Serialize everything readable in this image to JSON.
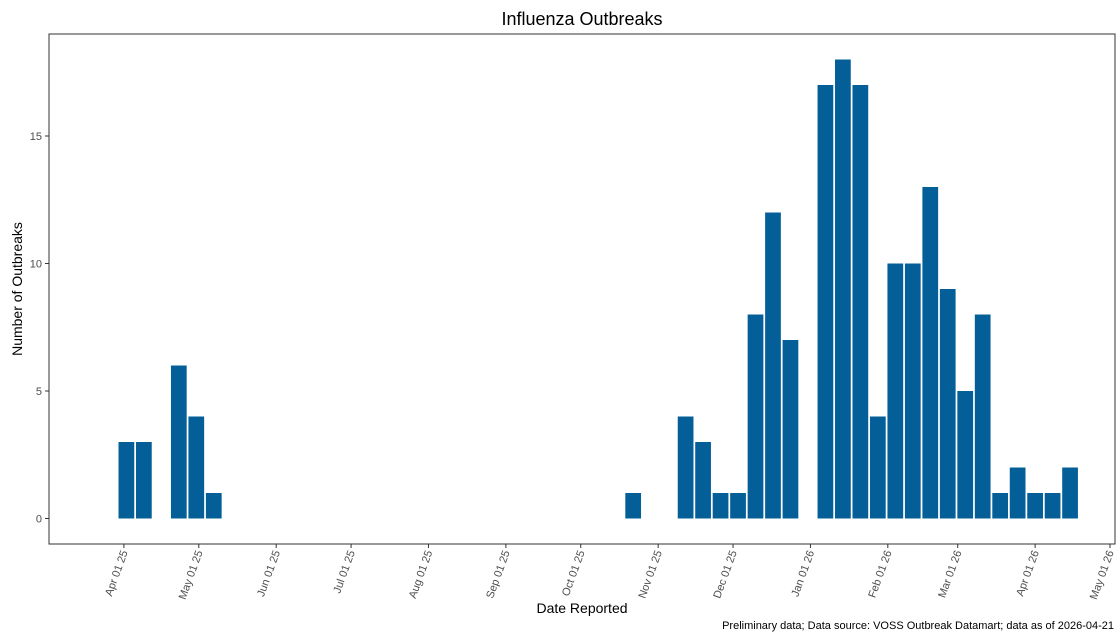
{
  "chart_data": {
    "type": "bar",
    "title": "Influenza Outbreaks",
    "xlabel": "Date Reported",
    "ylabel": "Number of Outbreaks",
    "caption": "Preliminary data; Data source: VOSS Outbreak Datamart; data as of 2026-04-21",
    "x_axis_range": [
      "2025-03-02",
      "2026-05-03"
    ],
    "x_ticks": [
      "2025-04-01",
      "2025-05-01",
      "2025-06-01",
      "2025-07-01",
      "2025-08-01",
      "2025-09-01",
      "2025-10-01",
      "2025-11-01",
      "2025-12-01",
      "2026-01-01",
      "2026-02-01",
      "2026-03-01",
      "2026-04-01",
      "2026-05-01"
    ],
    "x_tick_labels": [
      "Apr 01 25",
      "May 01 25",
      "Jun 01 25",
      "Jul 01 25",
      "Aug 01 25",
      "Sep 01 25",
      "Oct 01 25",
      "Nov 01 25",
      "Dec 01 25",
      "Jan 01 26",
      "Feb 01 26",
      "Mar 01 26",
      "Apr 01 26",
      "May 01 26"
    ],
    "ylim": [
      -1,
      19
    ],
    "y_ticks": [
      0,
      5,
      10,
      15
    ],
    "grid": false,
    "bar_color": "#045f98",
    "series": [
      {
        "x": [
          "2025-04-02",
          "2025-04-09",
          "2025-04-23",
          "2025-04-30",
          "2025-05-07",
          "2025-10-22",
          "2025-11-12",
          "2025-11-19",
          "2025-11-26",
          "2025-12-03",
          "2025-12-10",
          "2025-12-17",
          "2025-12-24",
          "2026-01-07",
          "2026-01-14",
          "2026-01-21",
          "2026-01-28",
          "2026-02-04",
          "2026-02-11",
          "2026-02-18",
          "2026-02-25",
          "2026-03-04",
          "2026-03-11",
          "2026-03-18",
          "2026-03-25",
          "2026-04-01",
          "2026-04-08",
          "2026-04-15"
        ],
        "values": [
          3,
          3,
          6,
          4,
          1,
          1,
          4,
          3,
          1,
          1,
          8,
          12,
          7,
          17,
          18,
          17,
          4,
          10,
          10,
          13,
          9,
          5,
          8,
          1,
          2,
          1,
          1,
          2
        ]
      }
    ]
  }
}
